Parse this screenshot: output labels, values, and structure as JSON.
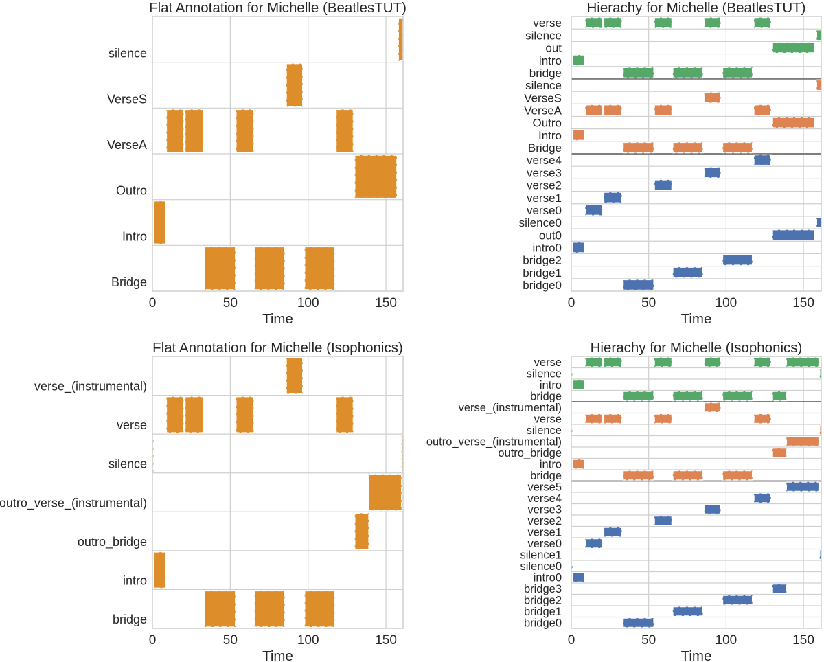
{
  "colors": {
    "flat": "#DD8E2A",
    "level0": "#55A868",
    "level1": "#DD8452",
    "level2": "#4C72B0",
    "grid": "#CFCFCF",
    "separator": "#7F7F7F"
  },
  "chart_data": [
    {
      "type": "bar",
      "subtype": "segment-annotation",
      "title": "Flat Annotation for Michelle (BeatlesTUT)",
      "xlabel": "Time",
      "xlim": [
        0,
        161
      ],
      "xticks": [
        0,
        50,
        100,
        150
      ],
      "rows": [
        {
          "label": "silence",
          "segments": [
            [
              158,
              161
            ]
          ]
        },
        {
          "label": "VerseS",
          "segments": [
            [
              86,
              96.5
            ]
          ]
        },
        {
          "label": "VerseA",
          "segments": [
            [
              9,
              20
            ],
            [
              21,
              32.6
            ],
            [
              53.7,
              65
            ],
            [
              118,
              129
            ]
          ]
        },
        {
          "label": "Outro",
          "segments": [
            [
              130,
              157
            ]
          ]
        },
        {
          "label": "Intro",
          "segments": [
            [
              1,
              8.4
            ]
          ]
        },
        {
          "label": "Bridge",
          "segments": [
            [
              33.5,
              53.3
            ],
            [
              65.6,
              85
            ],
            [
              97.8,
              117
            ]
          ]
        }
      ]
    },
    {
      "type": "bar",
      "subtype": "segment-hierarchy",
      "title": "Hierachy for Michelle (BeatlesTUT)",
      "xlabel": "Time",
      "xlim": [
        0,
        161.5
      ],
      "xticks": [
        0,
        50,
        100,
        150
      ],
      "levels": [
        {
          "rows": [
            {
              "label": "verse",
              "segments": [
                [
                  9,
                  20
                ],
                [
                  21,
                  32.6
                ],
                [
                  53.7,
                  65
                ],
                [
                  86,
                  96.5
                ],
                [
                  118,
                  129
                ]
              ]
            },
            {
              "label": "silence",
              "segments": [
                [
                  158.5,
                  161.5
                ]
              ]
            },
            {
              "label": "out",
              "segments": [
                [
                  130,
                  157
                ]
              ]
            },
            {
              "label": "intro",
              "segments": [
                [
                  1,
                  8.4
                ]
              ]
            },
            {
              "label": "bridge",
              "segments": [
                [
                  33.5,
                  53.3
                ],
                [
                  65.6,
                  85
                ],
                [
                  97.8,
                  117
                ]
              ]
            }
          ]
        },
        {
          "rows": [
            {
              "label": "silence",
              "segments": [
                [
                  158.5,
                  161.5
                ]
              ]
            },
            {
              "label": "VerseS",
              "segments": [
                [
                  86,
                  96.5
                ]
              ]
            },
            {
              "label": "VerseA",
              "segments": [
                [
                  9,
                  20
                ],
                [
                  21,
                  32.6
                ],
                [
                  53.7,
                  65
                ],
                [
                  118,
                  129
                ]
              ]
            },
            {
              "label": "Outro",
              "segments": [
                [
                  130,
                  157
                ]
              ]
            },
            {
              "label": "Intro",
              "segments": [
                [
                  1,
                  8.4
                ]
              ]
            },
            {
              "label": "Bridge",
              "segments": [
                [
                  33.5,
                  53.3
                ],
                [
                  65.6,
                  85
                ],
                [
                  97.8,
                  117
                ]
              ]
            }
          ]
        },
        {
          "rows": [
            {
              "label": "verse4",
              "segments": [
                [
                  118,
                  129
                ]
              ]
            },
            {
              "label": "verse3",
              "segments": [
                [
                  86,
                  96.5
                ]
              ]
            },
            {
              "label": "verse2",
              "segments": [
                [
                  53.7,
                  65
                ]
              ]
            },
            {
              "label": "verse1",
              "segments": [
                [
                  21,
                  32.6
                ]
              ]
            },
            {
              "label": "verse0",
              "segments": [
                [
                  9,
                  20
                ]
              ]
            },
            {
              "label": "silence0",
              "segments": [
                [
                  158.5,
                  161.5
                ]
              ]
            },
            {
              "label": "out0",
              "segments": [
                [
                  130,
                  157
                ]
              ]
            },
            {
              "label": "intro0",
              "segments": [
                [
                  1,
                  8.4
                ]
              ]
            },
            {
              "label": "bridge2",
              "segments": [
                [
                  97.8,
                  117
                ]
              ]
            },
            {
              "label": "bridge1",
              "segments": [
                [
                  65.6,
                  85
                ]
              ]
            },
            {
              "label": "bridge0",
              "segments": [
                [
                  33.5,
                  53.3
                ]
              ]
            }
          ]
        }
      ]
    },
    {
      "type": "bar",
      "subtype": "segment-annotation",
      "title": "Flat Annotation for Michelle (Isophonics)",
      "xlabel": "Time",
      "xlim": [
        0,
        161
      ],
      "xticks": [
        0,
        50,
        100,
        150
      ],
      "rows": [
        {
          "label": "verse_(instrumental)",
          "segments": [
            [
              86,
              96.5
            ]
          ]
        },
        {
          "label": "verse",
          "segments": [
            [
              9,
              20
            ],
            [
              21,
              32.6
            ],
            [
              53.7,
              65
            ],
            [
              118,
              129
            ]
          ]
        },
        {
          "label": "silence",
          "segments": [
            [
              0,
              0.4
            ],
            [
              160,
              161
            ]
          ]
        },
        {
          "label": "outro_verse_(instrumental)",
          "segments": [
            [
              139,
              160
            ]
          ]
        },
        {
          "label": "outro_bridge",
          "segments": [
            [
              130,
              139
            ]
          ]
        },
        {
          "label": "intro",
          "segments": [
            [
              1,
              8.4
            ]
          ]
        },
        {
          "label": "bridge",
          "segments": [
            [
              33.5,
              53.3
            ],
            [
              65.6,
              85
            ],
            [
              97.8,
              117
            ]
          ]
        }
      ]
    },
    {
      "type": "bar",
      "subtype": "segment-hierarchy",
      "title": "Hierachy for Michelle (Isophonics)",
      "xlabel": "Time",
      "xlim": [
        0,
        161.5
      ],
      "xticks": [
        0,
        50,
        100,
        150
      ],
      "levels": [
        {
          "rows": [
            {
              "label": "verse",
              "segments": [
                [
                  9,
                  20
                ],
                [
                  21,
                  32.6
                ],
                [
                  53.7,
                  65
                ],
                [
                  86,
                  96.5
                ],
                [
                  118,
                  129
                ],
                [
                  139,
                  160
                ]
              ]
            },
            {
              "label": "silence",
              "segments": [
                [
                  0,
                  0.4
                ],
                [
                  160.5,
                  161.5
                ]
              ]
            },
            {
              "label": "intro",
              "segments": [
                [
                  1,
                  8.4
                ]
              ]
            },
            {
              "label": "bridge",
              "segments": [
                [
                  33.5,
                  53.3
                ],
                [
                  65.6,
                  85
                ],
                [
                  97.8,
                  117
                ],
                [
                  130,
                  139
                ]
              ]
            }
          ]
        },
        {
          "rows": [
            {
              "label": "verse_(instrumental)",
              "segments": [
                [
                  86,
                  96.5
                ]
              ]
            },
            {
              "label": "verse",
              "segments": [
                [
                  9,
                  20
                ],
                [
                  21,
                  32.6
                ],
                [
                  53.7,
                  65
                ],
                [
                  118,
                  129
                ]
              ]
            },
            {
              "label": "silence",
              "segments": [
                [
                  0,
                  0.4
                ],
                [
                  160.5,
                  161.5
                ]
              ]
            },
            {
              "label": "outro_verse_(instrumental)",
              "segments": [
                [
                  139,
                  160
                ]
              ]
            },
            {
              "label": "outro_bridge",
              "segments": [
                [
                  130,
                  139
                ]
              ]
            },
            {
              "label": "intro",
              "segments": [
                [
                  1,
                  8.4
                ]
              ]
            },
            {
              "label": "bridge",
              "segments": [
                [
                  33.5,
                  53.3
                ],
                [
                  65.6,
                  85
                ],
                [
                  97.8,
                  117
                ]
              ]
            }
          ]
        },
        {
          "rows": [
            {
              "label": "verse5",
              "segments": [
                [
                  139,
                  160
                ]
              ]
            },
            {
              "label": "verse4",
              "segments": [
                [
                  118,
                  129
                ]
              ]
            },
            {
              "label": "verse3",
              "segments": [
                [
                  86,
                  96.5
                ]
              ]
            },
            {
              "label": "verse2",
              "segments": [
                [
                  53.7,
                  65
                ]
              ]
            },
            {
              "label": "verse1",
              "segments": [
                [
                  21,
                  32.6
                ]
              ]
            },
            {
              "label": "verse0",
              "segments": [
                [
                  9,
                  20
                ]
              ]
            },
            {
              "label": "silence1",
              "segments": [
                [
                  160.5,
                  161.5
                ]
              ]
            },
            {
              "label": "silence0",
              "segments": [
                [
                  0,
                  0.4
                ]
              ]
            },
            {
              "label": "intro0",
              "segments": [
                [
                  1,
                  8.4
                ]
              ]
            },
            {
              "label": "bridge3",
              "segments": [
                [
                  130,
                  139
                ]
              ]
            },
            {
              "label": "bridge2",
              "segments": [
                [
                  97.8,
                  117
                ]
              ]
            },
            {
              "label": "bridge1",
              "segments": [
                [
                  65.6,
                  85
                ]
              ]
            },
            {
              "label": "bridge0",
              "segments": [
                [
                  33.5,
                  53.3
                ]
              ]
            }
          ]
        }
      ]
    }
  ]
}
